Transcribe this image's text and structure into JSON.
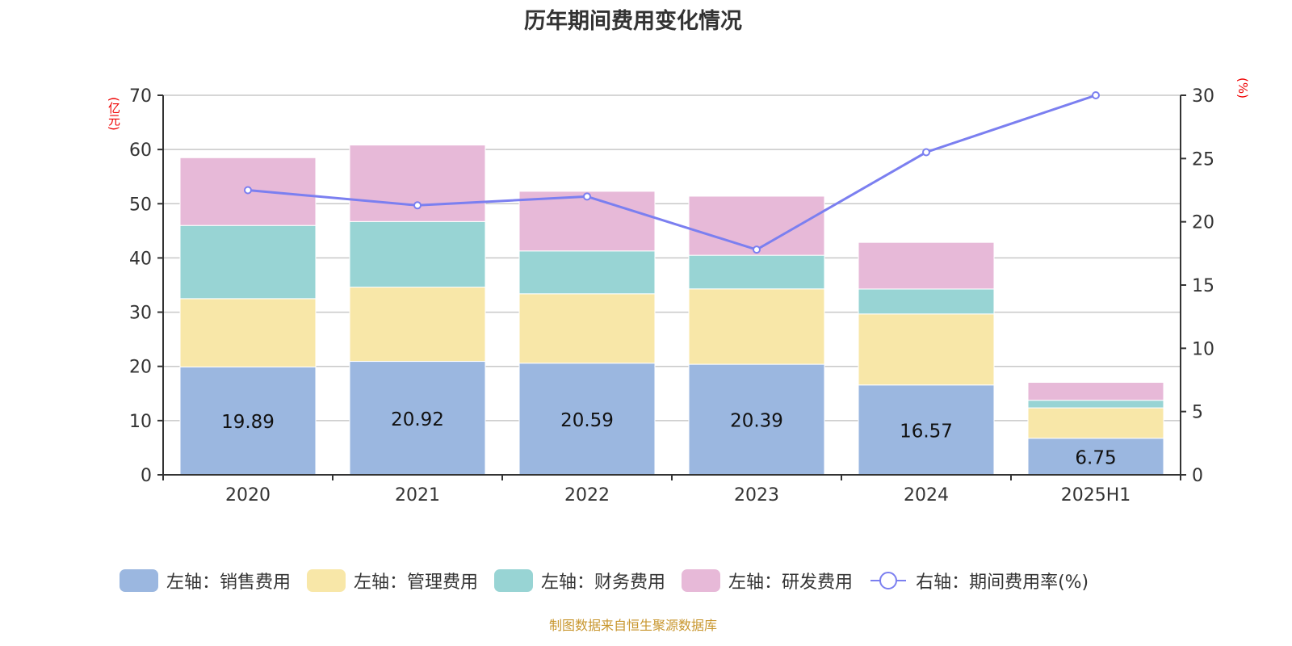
{
  "chart_data": {
    "type": "bar",
    "title": "历年期间费用变化情况",
    "categories": [
      "2020",
      "2021",
      "2022",
      "2023",
      "2024",
      "2025H1"
    ],
    "left_axis": {
      "unit_label": "(亿元)",
      "ylim": [
        0,
        70
      ],
      "ticks": [
        0,
        10,
        20,
        30,
        40,
        50,
        60,
        70
      ]
    },
    "right_axis": {
      "unit_label": "(%)",
      "ylim": [
        0,
        30
      ],
      "ticks": [
        0,
        5,
        10,
        15,
        20,
        25,
        30
      ]
    },
    "grid": true,
    "stacked": true,
    "series": [
      {
        "name": "左轴：销售费用",
        "type": "bar",
        "axis": "left",
        "color": "#9bb7e0",
        "values": [
          19.89,
          20.92,
          20.59,
          20.39,
          16.57,
          6.75
        ],
        "labels": [
          "19.89",
          "20.92",
          "20.59",
          "20.39",
          "16.57",
          "6.75"
        ]
      },
      {
        "name": "左轴：管理费用",
        "type": "bar",
        "axis": "left",
        "color": "#f8e7a8",
        "values": [
          12.6,
          13.7,
          12.8,
          13.9,
          13.1,
          5.6
        ]
      },
      {
        "name": "左轴：财务费用",
        "type": "bar",
        "axis": "left",
        "color": "#98d4d4",
        "values": [
          13.5,
          12.1,
          7.9,
          6.2,
          4.6,
          1.4
        ]
      },
      {
        "name": "左轴：研发费用",
        "type": "bar",
        "axis": "left",
        "color": "#e7b9d8",
        "values": [
          12.5,
          14.1,
          11.0,
          10.9,
          8.6,
          3.3
        ]
      },
      {
        "name": "右轴：期间费用率(%)",
        "type": "line",
        "axis": "right",
        "color": "#7b7ff0",
        "values": [
          22.5,
          21.3,
          22.0,
          17.8,
          25.5,
          30.0
        ]
      }
    ],
    "legend_position": "bottom"
  },
  "footer": "制图数据来自恒生聚源数据库"
}
